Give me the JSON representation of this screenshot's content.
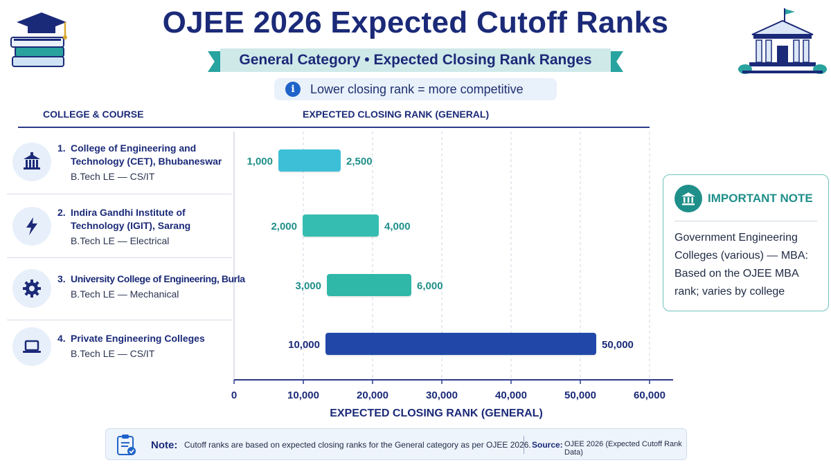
{
  "title": "OJEE 2026 Expected Cutoff Ranks",
  "subtitle": "General Category • Expected Closing Rank Ranges",
  "info_note": "Lower closing rank = more competitive",
  "headers": {
    "left": "COLLEGE & COURSE",
    "right": "EXPECTED CLOSING RANK (GENERAL)"
  },
  "colors": {
    "navy": "#1b2a78",
    "teal": "#1f8f8a",
    "bar_blue": "#2148a8"
  },
  "rows": [
    {
      "number": "1.",
      "name": "College of Engineering and Technology (CET), Bhubaneswar",
      "course": "B.Tech LE — CS/IT",
      "icon": "institution-icon"
    },
    {
      "number": "2.",
      "name": "Indira Gandhi Institute of Technology (IGIT), Sarang",
      "course": "B.Tech LE — Electrical",
      "icon": "lightning-icon"
    },
    {
      "number": "3.",
      "name": "University College of Engineering, Burla",
      "course": "B.Tech LE — Mechanical",
      "icon": "gear-icon"
    },
    {
      "number": "4.",
      "name": "Private Engineering Colleges",
      "course": "B.Tech LE — CS/IT",
      "icon": "laptop-icon"
    }
  ],
  "chart_data": {
    "type": "bar",
    "orientation": "horizontal",
    "categories": [
      "College of Engineering and Technology (CET), Bhubaneswar",
      "Indira Gandhi Institute of Technology (IGIT), Sarang",
      "University College of Engineering, Burla",
      "Private Engineering Colleges"
    ],
    "ranges": [
      {
        "min": 1000,
        "max": 2500,
        "min_label": "1,000",
        "max_label": "2,500",
        "color": "#3dbfd8"
      },
      {
        "min": 2000,
        "max": 4000,
        "min_label": "2,000",
        "max_label": "4,000",
        "color": "#36bdb1"
      },
      {
        "min": 3000,
        "max": 6000,
        "min_label": "3,000",
        "max_label": "6,000",
        "color": "#2fb7a8"
      },
      {
        "min": 10000,
        "max": 50000,
        "min_label": "10,000",
        "max_label": "50,000",
        "color": "#2148a8"
      }
    ],
    "xlabel": "EXPECTED CLOSING RANK (GENERAL)",
    "xlim": [
      0,
      60000
    ],
    "xticks": [
      0,
      10000,
      20000,
      30000,
      40000,
      50000,
      60000
    ],
    "xtick_labels": [
      "0",
      "10,000",
      "20,000",
      "30,000",
      "40,000",
      "50,000",
      "60,000"
    ],
    "grid": "vertical dashed"
  },
  "important_note": {
    "title": "IMPORTANT NOTE",
    "body": "Government Engineering Colleges (various) — MBA: Based on the OJEE MBA rank; varies by college"
  },
  "footer": {
    "note_label": "Note:",
    "note_text": "Cutoff ranks are based on expected closing ranks for the General category as per OJEE 2026.",
    "source_label": "Source:",
    "source_text": "OJEE 2026 (Expected Cutoff Rank Data)"
  }
}
